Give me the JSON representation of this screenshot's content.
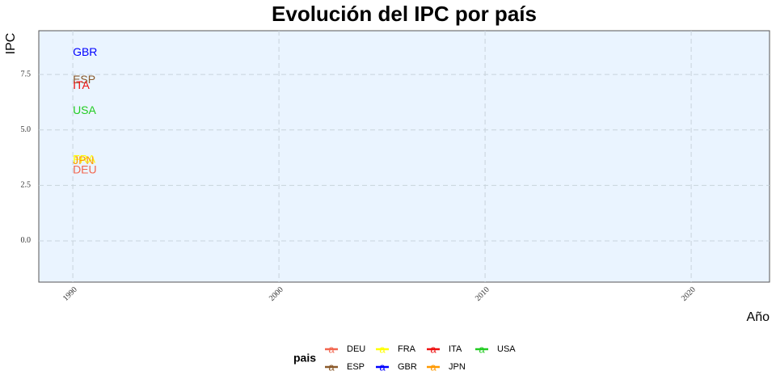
{
  "chart_data": {
    "type": "line",
    "title": "Evolución del IPC por país",
    "x_label": "Año",
    "y_label": "IPC",
    "legend_title": "pais",
    "legend_key": "a",
    "x": [
      1990
    ],
    "series": [
      {
        "name": "DEU",
        "color": "#f2664f",
        "values": [
          3.17
        ]
      },
      {
        "name": "ESP",
        "color": "#8b5a2b",
        "values": [
          7.24
        ]
      },
      {
        "name": "FRA",
        "color": "#ffff00",
        "values": [
          3.64
        ]
      },
      {
        "name": "GBR",
        "color": "#0000ff",
        "values": [
          8.48
        ]
      },
      {
        "name": "ITA",
        "color": "#ee1111",
        "values": [
          6.99
        ]
      },
      {
        "name": "JPN",
        "color": "#ff9900",
        "values": [
          3.6
        ]
      },
      {
        "name": "USA",
        "color": "#22cc22",
        "values": [
          5.86
        ]
      }
    ],
    "xlim": [
      1988.35,
      2023.8
    ],
    "xticks": [
      1990,
      2000,
      2010,
      2020
    ],
    "ylim": [
      -1.86,
      9.47
    ],
    "yticks": [
      {
        "value": 0,
        "label": "0.0"
      },
      2.5,
      {
        "value": 5,
        "label": "5.0"
      },
      7.5
    ],
    "grid": true,
    "legend_position": "bottom"
  }
}
